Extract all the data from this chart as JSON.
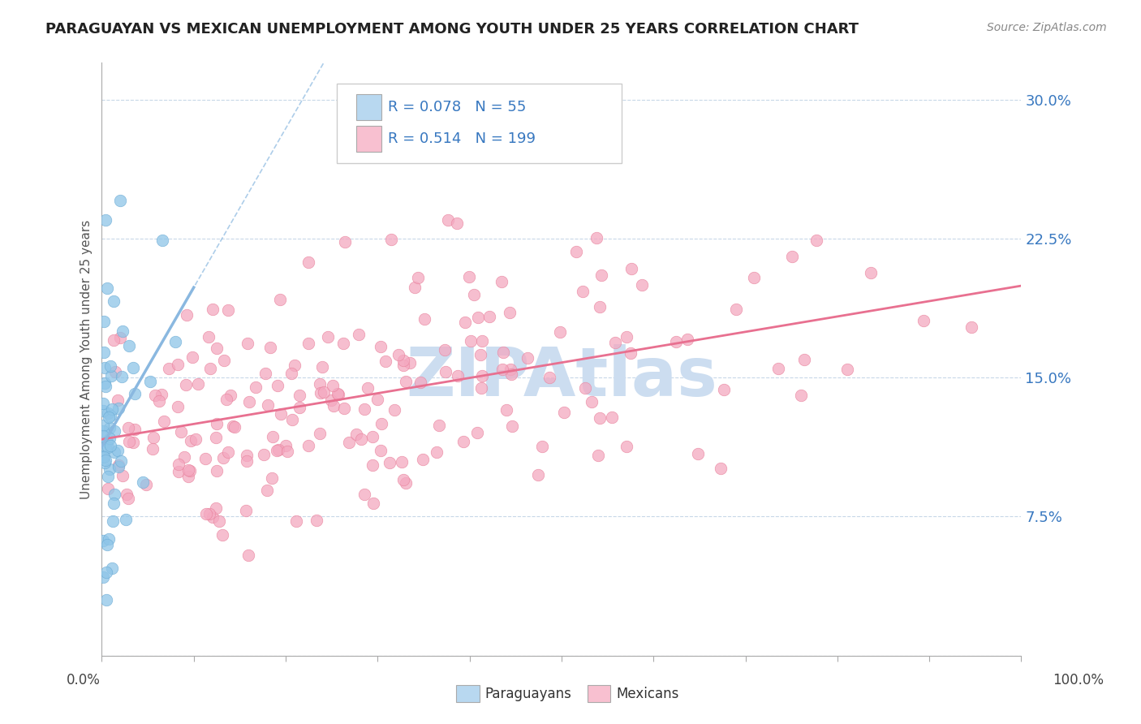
{
  "title": "PARAGUAYAN VS MEXICAN UNEMPLOYMENT AMONG YOUTH UNDER 25 YEARS CORRELATION CHART",
  "source": "Source: ZipAtlas.com",
  "ylabel": "Unemployment Among Youth under 25 years",
  "xlim": [
    0.0,
    1.0
  ],
  "ylim": [
    0.0,
    0.32
  ],
  "yticks": [
    0.0,
    0.075,
    0.15,
    0.225,
    0.3
  ],
  "ytick_labels": [
    "",
    "7.5%",
    "15.0%",
    "22.5%",
    "30.0%"
  ],
  "R_paraguayan": 0.078,
  "N_paraguayan": 55,
  "R_mexican": 0.514,
  "N_mexican": 199,
  "color_paraguayan": "#8ec5e8",
  "color_paraguayan_edge": "#6aaad4",
  "color_mexican": "#f4a8c0",
  "color_mexican_edge": "#e8809a",
  "color_paraguayan_line": "#8ab8e0",
  "color_mexican_line": "#e87090",
  "color_r_values": "#3878c0",
  "legend_box_color_paraguayan": "#b8d8f0",
  "legend_box_color_mexican": "#f8c0d0",
  "background_color": "#ffffff",
  "watermark_color": "#ccddf0",
  "grid_color": "#c8d8e8",
  "title_color": "#222222",
  "source_color": "#888888",
  "axis_color": "#aaaaaa"
}
